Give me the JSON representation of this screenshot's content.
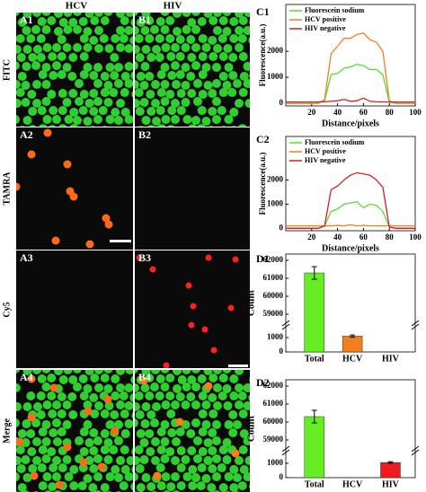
{
  "header": {
    "columns": [
      "HCV",
      "HIV"
    ],
    "rows": [
      "FITC",
      "TAMRA",
      "Cy5",
      "Merge"
    ]
  },
  "panels": [
    "A1",
    "B1",
    "A2",
    "B2",
    "A3",
    "B3",
    "A4",
    "B4"
  ],
  "chart_data": [
    {
      "type": "line",
      "panel": "C1",
      "x_label": "Distance/pixels",
      "y_label": "Fluorescence(a.u.)",
      "x": [
        0,
        5,
        10,
        15,
        20,
        25,
        30,
        35,
        40,
        45,
        50,
        55,
        60,
        65,
        70,
        75,
        80,
        85,
        90,
        95,
        100
      ],
      "xlim": [
        0,
        100
      ],
      "xticks": [
        20,
        40,
        60,
        80,
        100
      ],
      "ylim": [
        -100,
        3800
      ],
      "yticks": [
        0,
        1000,
        2000
      ],
      "legend": "upper left",
      "series": [
        {
          "name": "Fluorescein sodium",
          "color": "#55dd33",
          "values": [
            0,
            0,
            0,
            0,
            0,
            0,
            100,
            1100,
            1150,
            1350,
            1400,
            1500,
            1450,
            1300,
            1300,
            1100,
            50,
            0,
            0,
            0,
            0
          ]
        },
        {
          "name": "HCV positive",
          "color": "#f07f1f",
          "values": [
            0,
            0,
            0,
            0,
            0,
            0,
            150,
            1900,
            2200,
            2500,
            2500,
            2650,
            2700,
            2450,
            2350,
            2000,
            100,
            0,
            0,
            0,
            0
          ]
        },
        {
          "name": "HIV negative",
          "color": "#dd1c1c",
          "values": [
            50,
            50,
            50,
            50,
            50,
            50,
            60,
            80,
            100,
            150,
            80,
            100,
            200,
            80,
            60,
            50,
            50,
            50,
            50,
            50,
            50
          ]
        }
      ]
    },
    {
      "type": "line",
      "panel": "C2",
      "x_label": "Distance/pixels",
      "y_label": "Fluorescence(a.u.)",
      "x": [
        0,
        5,
        10,
        15,
        20,
        25,
        30,
        35,
        40,
        45,
        50,
        55,
        60,
        65,
        70,
        75,
        80,
        85,
        90,
        95,
        100
      ],
      "xlim": [
        0,
        100
      ],
      "xticks": [
        20,
        40,
        60,
        80,
        100
      ],
      "ylim": [
        -100,
        3800
      ],
      "yticks": [
        0,
        1000,
        2000
      ],
      "legend": "upper left",
      "series": [
        {
          "name": "Fluorescein sodium",
          "color": "#55dd33",
          "values": [
            0,
            0,
            0,
            0,
            0,
            0,
            100,
            700,
            800,
            1000,
            1050,
            1100,
            850,
            1000,
            950,
            700,
            50,
            0,
            0,
            0,
            0
          ]
        },
        {
          "name": "HCV positive",
          "color": "#f07f1f",
          "values": [
            100,
            100,
            100,
            100,
            100,
            100,
            100,
            100,
            120,
            100,
            150,
            100,
            120,
            100,
            100,
            100,
            100,
            100,
            100,
            100,
            100
          ]
        },
        {
          "name": "HIV negative",
          "color": "#dd1c1c",
          "values": [
            0,
            0,
            0,
            0,
            0,
            0,
            100,
            1600,
            1750,
            2000,
            2200,
            2300,
            2250,
            2200,
            2000,
            1700,
            50,
            0,
            0,
            0,
            0
          ]
        }
      ]
    },
    {
      "type": "bar",
      "panel": "D1",
      "y_label": "Count",
      "categories": [
        "Total",
        "HCV",
        "HIV"
      ],
      "values": [
        61300,
        1100,
        0
      ],
      "errors": [
        350,
        80,
        null
      ],
      "colors": [
        "#66ee22",
        "#f07f1f",
        "#ee1c1c"
      ],
      "ylim": [
        0,
        62350
      ],
      "axis_break": [
        1500,
        58700
      ],
      "yticks": [
        0,
        1000,
        59000,
        60000,
        61000,
        62000
      ]
    },
    {
      "type": "bar",
      "panel": "D2",
      "y_label": "Count",
      "categories": [
        "Total",
        "HCV",
        "HIV"
      ],
      "values": [
        60300,
        0,
        1050
      ],
      "errors": [
        350,
        null,
        60
      ],
      "colors": [
        "#66ee22",
        "#f07f1f",
        "#ee1c1c"
      ],
      "ylim": [
        0,
        62350
      ],
      "axis_break": [
        1500,
        58700
      ],
      "yticks": [
        0,
        1000,
        59000,
        60000,
        61000,
        62000
      ]
    }
  ]
}
